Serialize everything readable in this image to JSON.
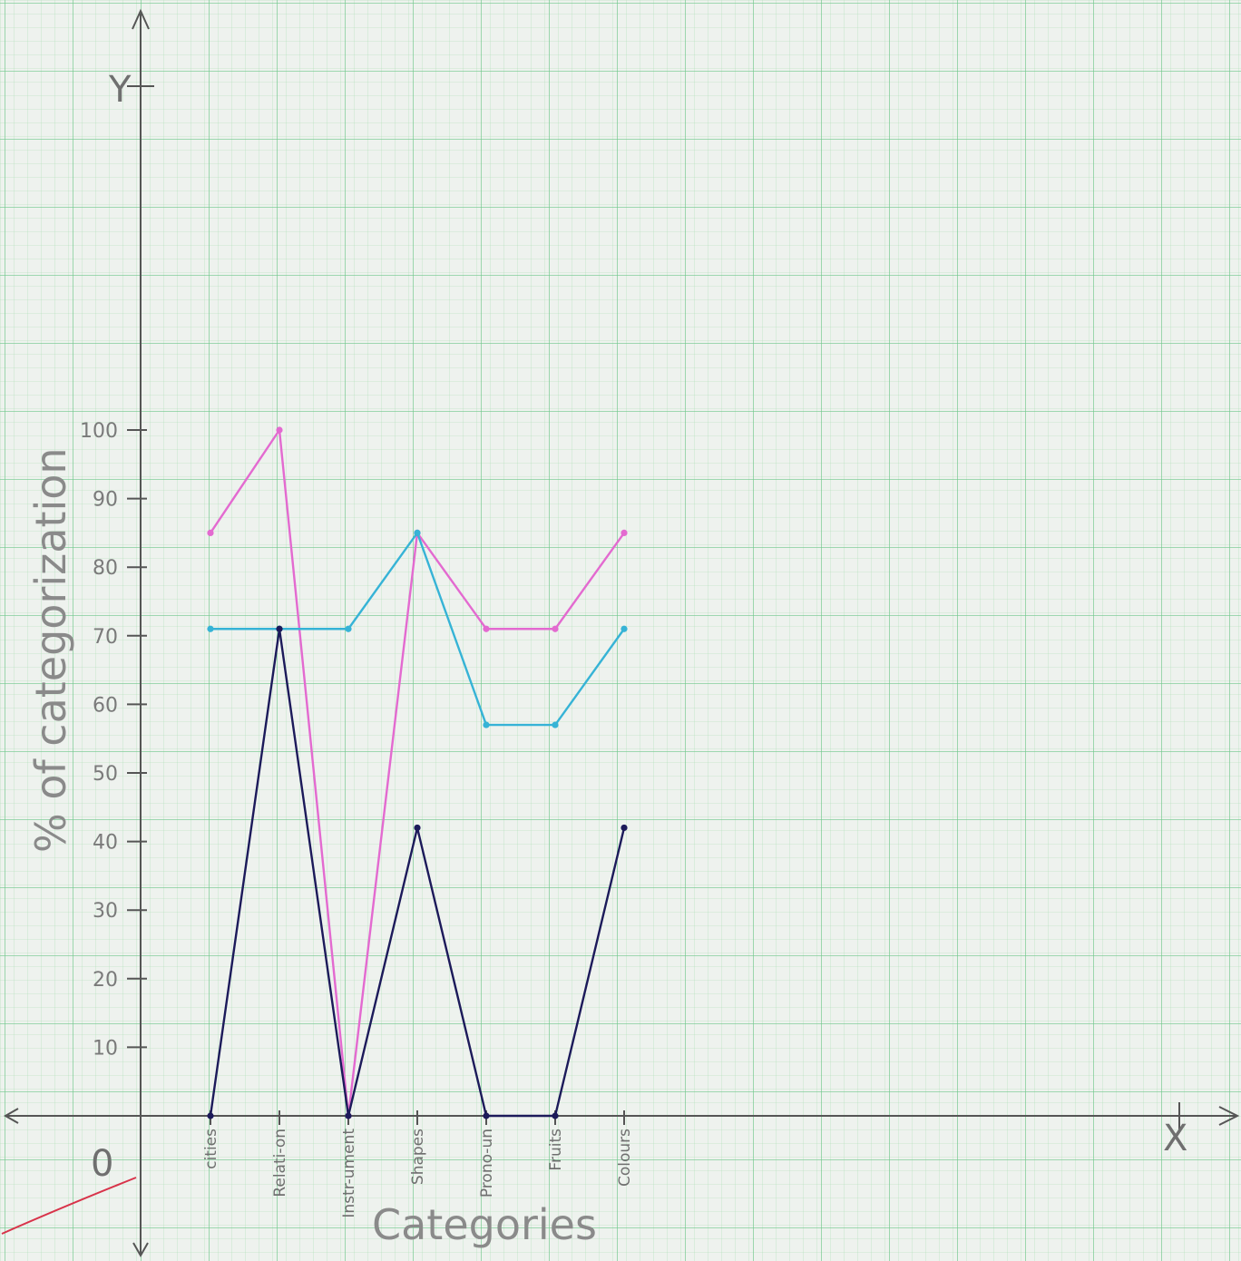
{
  "chart_data": {
    "type": "line",
    "title": "",
    "xlabel": "Categories",
    "ylabel": "% of categorization",
    "y_axis_letter": "Y",
    "x_axis_letter": "X",
    "origin_label": "0",
    "ylim": [
      0,
      100
    ],
    "yticks": [
      10,
      20,
      30,
      40,
      50,
      60,
      70,
      80,
      90,
      100
    ],
    "categories": [
      "cities",
      "Relati-on",
      "Instr-ument",
      "Shapes",
      "Prono-un",
      "Fruits",
      "Colours"
    ],
    "series": [
      {
        "color": "#e36ad0",
        "values": [
          85,
          100,
          0,
          85,
          71,
          71,
          85
        ]
      },
      {
        "color": "#36b3d6",
        "values": [
          71,
          71,
          71,
          85,
          57,
          57,
          71
        ]
      },
      {
        "color": "#1c1a5a",
        "values": [
          0,
          71,
          0,
          42,
          0,
          0,
          42
        ]
      }
    ],
    "grid": true,
    "legend": "none"
  }
}
